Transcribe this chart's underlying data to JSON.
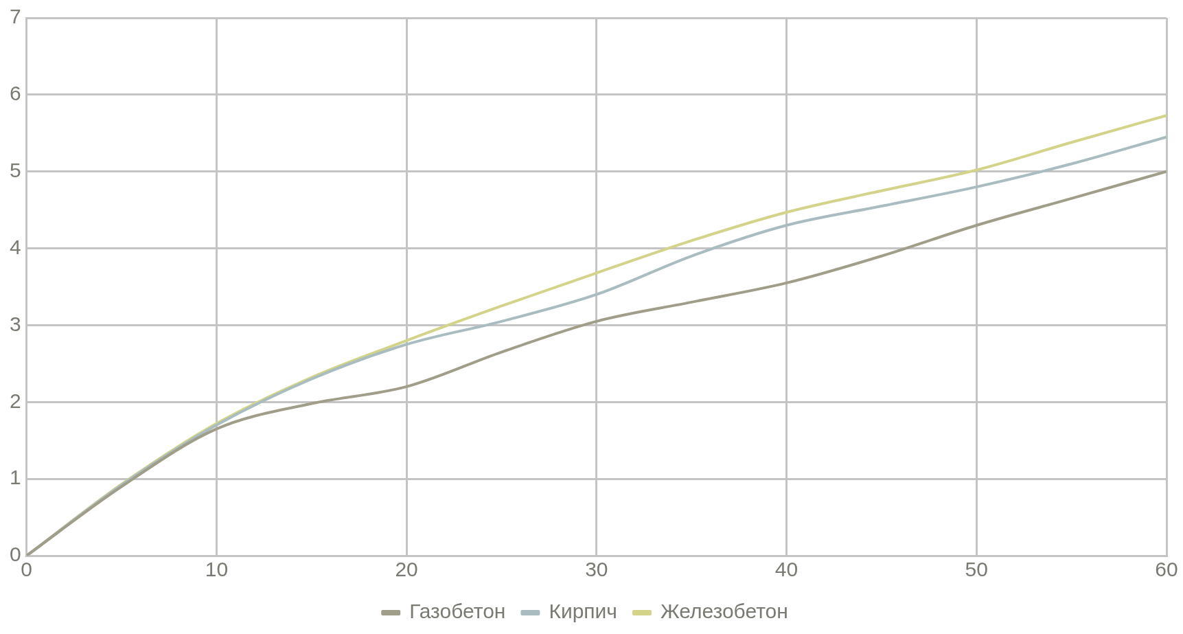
{
  "chart_data": {
    "type": "line",
    "x": [
      0,
      5,
      10,
      15,
      20,
      25,
      30,
      35,
      40,
      45,
      50,
      55,
      60
    ],
    "series": [
      {
        "name": "Газобетон",
        "color": "#a09d88",
        "values": [
          0,
          0.9,
          1.65,
          1.98,
          2.2,
          2.65,
          3.05,
          3.3,
          3.55,
          3.9,
          4.3,
          4.65,
          5.0
        ]
      },
      {
        "name": "Кирпич",
        "color": "#a9bcc0",
        "values": [
          0,
          0.92,
          1.7,
          2.3,
          2.75,
          3.05,
          3.4,
          3.9,
          4.3,
          4.55,
          4.8,
          5.1,
          5.45
        ]
      },
      {
        "name": "Железобетон",
        "color": "#d3d38a",
        "values": [
          0,
          0.93,
          1.72,
          2.32,
          2.8,
          3.25,
          3.68,
          4.1,
          4.47,
          4.75,
          5.02,
          5.38,
          5.73
        ]
      }
    ],
    "xlim": [
      0,
      60
    ],
    "xticks": [
      0,
      10,
      20,
      30,
      40,
      50,
      60
    ],
    "ylim": [
      0,
      7
    ],
    "yticks": [
      0,
      1,
      2,
      3,
      4,
      5,
      6,
      7
    ],
    "grid": true,
    "legend": "bottom",
    "marker": "none",
    "line_style": "solid"
  }
}
